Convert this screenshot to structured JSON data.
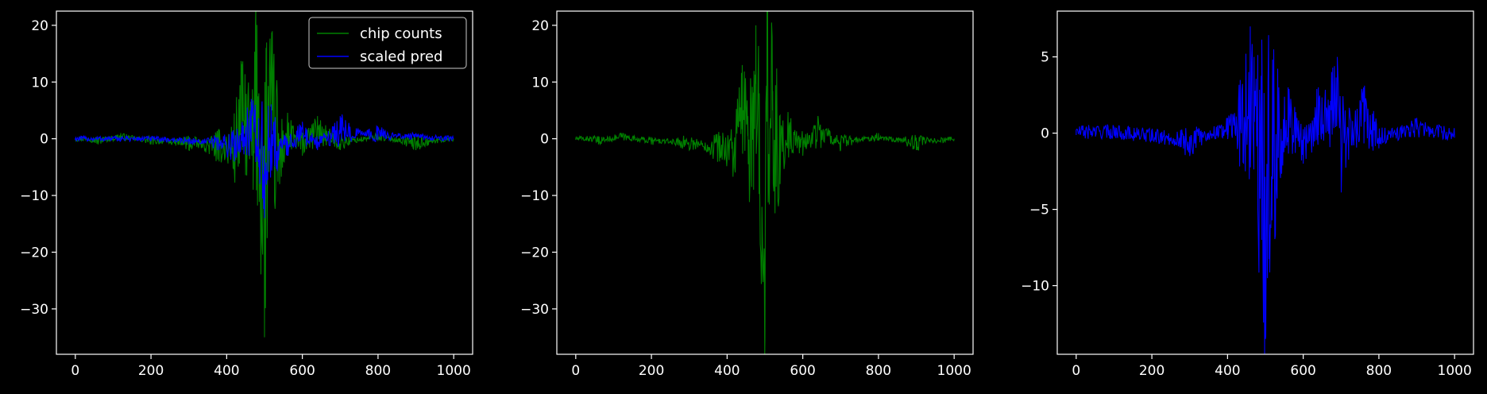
{
  "chart_data": [
    {
      "type": "line",
      "title": "",
      "xlabel": "",
      "ylabel": "",
      "xlim": [
        -50,
        1050
      ],
      "ylim": [
        -38,
        22.5
      ],
      "xticks": [
        0,
        200,
        400,
        600,
        800,
        1000
      ],
      "yticks": [
        -30,
        -20,
        -10,
        0,
        10,
        20
      ],
      "legend": {
        "position": "top-right"
      },
      "series": [
        {
          "name": "chip counts",
          "color": "#008000",
          "points": [
            [
              0,
              0
            ],
            [
              40,
              0
            ],
            [
              60,
              -1
            ],
            [
              120,
              1
            ],
            [
              200,
              -1
            ],
            [
              300,
              -2
            ],
            [
              380,
              -4
            ],
            [
              420,
              -5
            ],
            [
              440,
              13
            ],
            [
              455,
              4
            ],
            [
              470,
              -9
            ],
            [
              476,
              20
            ],
            [
              485,
              8
            ],
            [
              492,
              -12
            ],
            [
              500,
              -35
            ],
            [
              505,
              3
            ],
            [
              520,
              5
            ],
            [
              540,
              -8
            ],
            [
              560,
              2
            ],
            [
              600,
              -3
            ],
            [
              640,
              4
            ],
            [
              700,
              -2
            ],
            [
              800,
              1
            ],
            [
              900,
              -2
            ],
            [
              1000,
              0
            ]
          ]
        },
        {
          "name": "scaled pred",
          "color": "#0000ff",
          "points": [
            [
              0,
              0
            ],
            [
              100,
              0
            ],
            [
              200,
              0
            ],
            [
              300,
              -1
            ],
            [
              380,
              -2
            ],
            [
              420,
              -4
            ],
            [
              440,
              2
            ],
            [
              455,
              4
            ],
            [
              465,
              7
            ],
            [
              475,
              3
            ],
            [
              485,
              -5
            ],
            [
              495,
              -10
            ],
            [
              500,
              -14
            ],
            [
              505,
              -8
            ],
            [
              520,
              -4
            ],
            [
              560,
              -3
            ],
            [
              600,
              3
            ],
            [
              640,
              -2
            ],
            [
              700,
              4
            ],
            [
              800,
              2
            ],
            [
              900,
              1
            ],
            [
              1000,
              0
            ]
          ]
        }
      ]
    },
    {
      "type": "line",
      "title": "",
      "xlabel": "",
      "ylabel": "",
      "xlim": [
        -50,
        1050
      ],
      "ylim": [
        -38,
        22.5
      ],
      "xticks": [
        0,
        200,
        400,
        600,
        800,
        1000
      ],
      "yticks": [
        -30,
        -20,
        -10,
        0,
        10,
        20
      ],
      "series": [
        {
          "color": "#008000",
          "points": [
            [
              0,
              0
            ],
            [
              40,
              0
            ],
            [
              60,
              -1
            ],
            [
              120,
              1
            ],
            [
              200,
              -1
            ],
            [
              300,
              -2
            ],
            [
              380,
              -4
            ],
            [
              420,
              -5
            ],
            [
              440,
              13
            ],
            [
              455,
              4
            ],
            [
              470,
              -9
            ],
            [
              476,
              20
            ],
            [
              485,
              8
            ],
            [
              492,
              -12
            ],
            [
              500,
              -35
            ],
            [
              505,
              3
            ],
            [
              520,
              5
            ],
            [
              540,
              -8
            ],
            [
              560,
              2
            ],
            [
              600,
              -3
            ],
            [
              640,
              4
            ],
            [
              700,
              -2
            ],
            [
              800,
              1
            ],
            [
              900,
              -2
            ],
            [
              1000,
              0
            ]
          ]
        }
      ]
    },
    {
      "type": "line",
      "title": "",
      "xlabel": "",
      "ylabel": "",
      "xlim": [
        -50,
        1050
      ],
      "ylim": [
        -14.5,
        8
      ],
      "xticks": [
        0,
        200,
        400,
        600,
        800,
        1000
      ],
      "yticks": [
        -10,
        -5,
        0,
        5
      ],
      "series": [
        {
          "color": "#0000ff",
          "points": [
            [
              0,
              0.2
            ],
            [
              100,
              0.3
            ],
            [
              200,
              -0.5
            ],
            [
              300,
              -1.5
            ],
            [
              400,
              1
            ],
            [
              440,
              2.5
            ],
            [
              460,
              7
            ],
            [
              470,
              5
            ],
            [
              480,
              -5
            ],
            [
              490,
              -7
            ],
            [
              500,
              -13.5
            ],
            [
              510,
              -6
            ],
            [
              520,
              -3
            ],
            [
              560,
              3
            ],
            [
              600,
              -2
            ],
            [
              640,
              3
            ],
            [
              690,
              5
            ],
            [
              700,
              -2
            ],
            [
              760,
              3
            ],
            [
              800,
              -1
            ],
            [
              900,
              1
            ],
            [
              1000,
              -0.3
            ]
          ]
        }
      ]
    }
  ]
}
